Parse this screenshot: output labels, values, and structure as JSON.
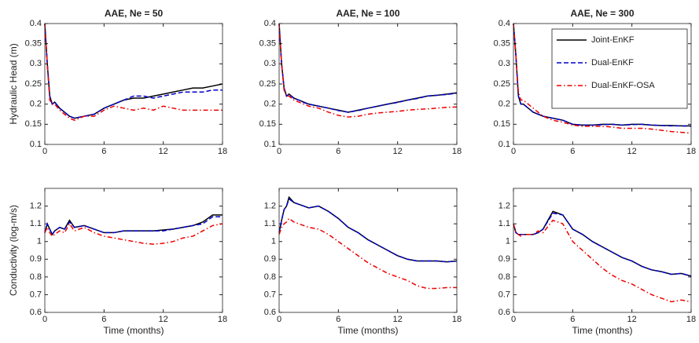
{
  "chart_data": [
    {
      "type": "line",
      "title": "AAE, Ne = 50",
      "ylabel": "Hydraulic Head (m)",
      "x": [
        0,
        0.25,
        0.5,
        0.75,
        1,
        1.5,
        2,
        2.5,
        3,
        4,
        5,
        6,
        7,
        8,
        9,
        10,
        11,
        12,
        13,
        14,
        15,
        16,
        17,
        18
      ],
      "xlim": [
        0,
        18
      ],
      "xticks": [
        0,
        6,
        12,
        18
      ],
      "ylim": [
        0.1,
        0.4
      ],
      "yticks": [
        0.1,
        0.15,
        0.2,
        0.25,
        0.3,
        0.35,
        0.4
      ],
      "series": [
        {
          "color": "#000000",
          "linestyle": "solid",
          "values": [
            0.4,
            0.3,
            0.22,
            0.2,
            0.205,
            0.19,
            0.18,
            0.17,
            0.165,
            0.17,
            0.175,
            0.19,
            0.2,
            0.21,
            0.215,
            0.215,
            0.22,
            0.225,
            0.23,
            0.235,
            0.24,
            0.24,
            0.245,
            0.25
          ]
        },
        {
          "color": "#0000cc",
          "linestyle": "dashed",
          "values": [
            0.4,
            0.3,
            0.22,
            0.2,
            0.205,
            0.19,
            0.18,
            0.17,
            0.165,
            0.17,
            0.175,
            0.19,
            0.2,
            0.21,
            0.22,
            0.22,
            0.215,
            0.22,
            0.225,
            0.23,
            0.23,
            0.23,
            0.235,
            0.235
          ]
        },
        {
          "color": "#ee0000",
          "linestyle": "dashdot",
          "values": [
            0.4,
            0.3,
            0.21,
            0.2,
            0.2,
            0.185,
            0.175,
            0.165,
            0.16,
            0.17,
            0.17,
            0.185,
            0.195,
            0.19,
            0.185,
            0.19,
            0.185,
            0.195,
            0.19,
            0.185,
            0.185,
            0.185,
            0.185,
            0.185
          ]
        }
      ]
    },
    {
      "type": "line",
      "title": "AAE, Ne = 100",
      "x": [
        0,
        0.25,
        0.5,
        0.75,
        1,
        1.5,
        2,
        2.5,
        3,
        4,
        5,
        6,
        7,
        8,
        9,
        10,
        11,
        12,
        13,
        14,
        15,
        16,
        17,
        18
      ],
      "xlim": [
        0,
        18
      ],
      "xticks": [
        0,
        6,
        12,
        18
      ],
      "ylim": [
        0.1,
        0.4
      ],
      "yticks": [
        0.1,
        0.15,
        0.2,
        0.25,
        0.3,
        0.35,
        0.4
      ],
      "series": [
        {
          "color": "#000000",
          "linestyle": "solid",
          "values": [
            0.4,
            0.3,
            0.24,
            0.22,
            0.225,
            0.215,
            0.21,
            0.205,
            0.2,
            0.195,
            0.19,
            0.185,
            0.18,
            0.185,
            0.19,
            0.195,
            0.2,
            0.205,
            0.21,
            0.215,
            0.22,
            0.222,
            0.225,
            0.228
          ]
        },
        {
          "color": "#0000cc",
          "linestyle": "dashed",
          "values": [
            0.4,
            0.3,
            0.24,
            0.22,
            0.224,
            0.214,
            0.21,
            0.204,
            0.2,
            0.195,
            0.19,
            0.184,
            0.18,
            0.184,
            0.19,
            0.195,
            0.2,
            0.204,
            0.21,
            0.214,
            0.22,
            0.222,
            0.224,
            0.227
          ]
        },
        {
          "color": "#ee0000",
          "linestyle": "dashdot",
          "values": [
            0.4,
            0.3,
            0.235,
            0.22,
            0.22,
            0.21,
            0.205,
            0.2,
            0.195,
            0.19,
            0.18,
            0.172,
            0.168,
            0.17,
            0.175,
            0.178,
            0.18,
            0.182,
            0.185,
            0.187,
            0.188,
            0.19,
            0.192,
            0.193
          ]
        }
      ]
    },
    {
      "type": "line",
      "title": "AAE, Ne = 300",
      "legend": "upper right",
      "x": [
        0,
        0.25,
        0.5,
        0.75,
        1,
        1.5,
        2,
        2.5,
        3,
        4,
        5,
        6,
        7,
        8,
        9,
        10,
        11,
        12,
        13,
        14,
        15,
        16,
        17,
        18
      ],
      "xlim": [
        0,
        18
      ],
      "xticks": [
        0,
        6,
        12,
        18
      ],
      "ylim": [
        0.1,
        0.4
      ],
      "yticks": [
        0.1,
        0.15,
        0.2,
        0.25,
        0.3,
        0.35,
        0.4
      ],
      "series": [
        {
          "name": "Joint-EnKF",
          "color": "#000000",
          "linestyle": "solid",
          "values": [
            0.4,
            0.32,
            0.22,
            0.2,
            0.2,
            0.19,
            0.18,
            0.175,
            0.17,
            0.165,
            0.16,
            0.15,
            0.148,
            0.148,
            0.15,
            0.15,
            0.148,
            0.15,
            0.15,
            0.148,
            0.147,
            0.147,
            0.146,
            0.146
          ]
        },
        {
          "name": "Dual-EnKF",
          "color": "#0000cc",
          "linestyle": "dashed",
          "values": [
            0.4,
            0.32,
            0.22,
            0.2,
            0.2,
            0.19,
            0.18,
            0.175,
            0.17,
            0.165,
            0.16,
            0.15,
            0.148,
            0.148,
            0.149,
            0.15,
            0.148,
            0.149,
            0.15,
            0.148,
            0.147,
            0.146,
            0.146,
            0.145
          ]
        },
        {
          "name": "Dual-EnKF-OSA",
          "color": "#ee0000",
          "linestyle": "dashdot",
          "values": [
            0.4,
            0.32,
            0.23,
            0.21,
            0.21,
            0.2,
            0.19,
            0.18,
            0.17,
            0.16,
            0.155,
            0.148,
            0.145,
            0.145,
            0.145,
            0.143,
            0.14,
            0.14,
            0.14,
            0.138,
            0.135,
            0.132,
            0.13,
            0.128
          ]
        }
      ]
    },
    {
      "type": "line",
      "ylabel": "Conductivity (log-m/s)",
      "xlabel": "Time (months)",
      "x": [
        0,
        0.25,
        0.5,
        0.75,
        1,
        1.5,
        2,
        2.5,
        3,
        4,
        5,
        6,
        7,
        8,
        9,
        10,
        11,
        12,
        13,
        14,
        15,
        16,
        17,
        18
      ],
      "xlim": [
        0,
        18
      ],
      "xticks": [
        0,
        6,
        12,
        18
      ],
      "ylim": [
        0.6,
        1.3
      ],
      "yticks": [
        0.6,
        0.7,
        0.8,
        0.9,
        1,
        1.1,
        1.2
      ],
      "series": [
        {
          "color": "#000000",
          "linestyle": "solid",
          "values": [
            1.05,
            1.1,
            1.07,
            1.04,
            1.06,
            1.08,
            1.07,
            1.12,
            1.08,
            1.09,
            1.07,
            1.05,
            1.05,
            1.06,
            1.06,
            1.06,
            1.06,
            1.065,
            1.07,
            1.08,
            1.09,
            1.11,
            1.15,
            1.15
          ]
        },
        {
          "color": "#0000cc",
          "linestyle": "dashed",
          "values": [
            1.05,
            1.1,
            1.07,
            1.04,
            1.06,
            1.08,
            1.07,
            1.11,
            1.08,
            1.09,
            1.07,
            1.05,
            1.05,
            1.06,
            1.06,
            1.06,
            1.06,
            1.06,
            1.07,
            1.08,
            1.09,
            1.1,
            1.14,
            1.14
          ]
        },
        {
          "color": "#ee0000",
          "linestyle": "dashdot",
          "values": [
            1.05,
            1.08,
            1.05,
            1.03,
            1.04,
            1.06,
            1.05,
            1.1,
            1.06,
            1.08,
            1.05,
            1.03,
            1.02,
            1.01,
            1.0,
            0.99,
            0.985,
            0.99,
            1.0,
            1.02,
            1.03,
            1.06,
            1.09,
            1.1
          ]
        }
      ]
    },
    {
      "type": "line",
      "xlabel": "Time (months)",
      "x": [
        0,
        0.25,
        0.5,
        0.75,
        1,
        1.5,
        2,
        2.5,
        3,
        4,
        5,
        6,
        7,
        8,
        9,
        10,
        11,
        12,
        13,
        14,
        15,
        16,
        17,
        18
      ],
      "xlim": [
        0,
        18
      ],
      "xticks": [
        0,
        6,
        12,
        18
      ],
      "ylim": [
        0.6,
        1.3
      ],
      "yticks": [
        0.6,
        0.7,
        0.8,
        0.9,
        1,
        1.1,
        1.2
      ],
      "series": [
        {
          "color": "#000000",
          "linestyle": "solid",
          "values": [
            1.05,
            1.12,
            1.18,
            1.2,
            1.25,
            1.22,
            1.21,
            1.2,
            1.19,
            1.2,
            1.17,
            1.13,
            1.08,
            1.05,
            1.01,
            0.98,
            0.95,
            0.92,
            0.9,
            0.89,
            0.89,
            0.89,
            0.885,
            0.89
          ]
        },
        {
          "color": "#0000cc",
          "linestyle": "dashed",
          "values": [
            1.05,
            1.12,
            1.18,
            1.2,
            1.24,
            1.22,
            1.21,
            1.2,
            1.19,
            1.2,
            1.17,
            1.13,
            1.08,
            1.05,
            1.01,
            0.98,
            0.95,
            0.92,
            0.9,
            0.89,
            0.89,
            0.89,
            0.885,
            0.89
          ]
        },
        {
          "color": "#ee0000",
          "linestyle": "dashdot",
          "values": [
            1.04,
            1.08,
            1.1,
            1.11,
            1.13,
            1.11,
            1.1,
            1.09,
            1.08,
            1.07,
            1.04,
            1.0,
            0.96,
            0.92,
            0.88,
            0.85,
            0.82,
            0.8,
            0.78,
            0.75,
            0.735,
            0.735,
            0.74,
            0.74
          ]
        }
      ]
    },
    {
      "type": "line",
      "xlabel": "Time (months)",
      "x": [
        0,
        0.25,
        0.5,
        0.75,
        1,
        1.5,
        2,
        2.5,
        3,
        4,
        5,
        6,
        7,
        8,
        9,
        10,
        11,
        12,
        13,
        14,
        15,
        16,
        17,
        18
      ],
      "xlim": [
        0,
        18
      ],
      "xticks": [
        0,
        6,
        12,
        18
      ],
      "ylim": [
        0.6,
        1.3
      ],
      "yticks": [
        0.6,
        0.7,
        0.8,
        0.9,
        1,
        1.1,
        1.2
      ],
      "series": [
        {
          "color": "#000000",
          "linestyle": "solid",
          "values": [
            1.1,
            1.05,
            1.04,
            1.04,
            1.04,
            1.04,
            1.04,
            1.05,
            1.07,
            1.17,
            1.15,
            1.07,
            1.04,
            1.0,
            0.97,
            0.94,
            0.91,
            0.89,
            0.86,
            0.84,
            0.83,
            0.815,
            0.82,
            0.805
          ]
        },
        {
          "color": "#0000cc",
          "linestyle": "dashed",
          "values": [
            1.1,
            1.05,
            1.04,
            1.04,
            1.04,
            1.04,
            1.04,
            1.05,
            1.07,
            1.16,
            1.15,
            1.07,
            1.04,
            1.0,
            0.97,
            0.94,
            0.91,
            0.89,
            0.86,
            0.84,
            0.83,
            0.815,
            0.82,
            0.805
          ]
        },
        {
          "color": "#ee0000",
          "linestyle": "dashdot",
          "values": [
            1.1,
            1.05,
            1.04,
            1.03,
            1.04,
            1.04,
            1.04,
            1.06,
            1.05,
            1.12,
            1.1,
            1.0,
            0.95,
            0.9,
            0.85,
            0.81,
            0.78,
            0.76,
            0.73,
            0.7,
            0.68,
            0.66,
            0.67,
            0.66
          ]
        }
      ]
    }
  ]
}
